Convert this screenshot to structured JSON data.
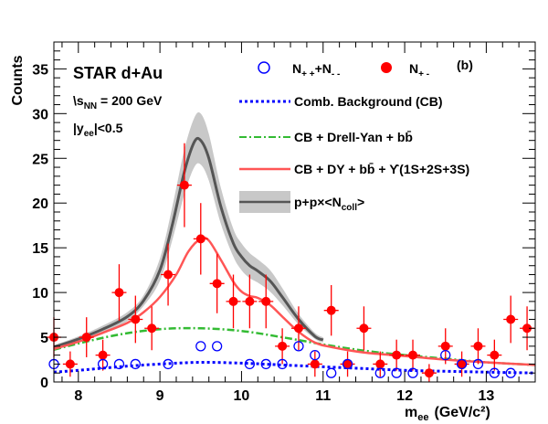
{
  "chart_data": {
    "type": "scatter",
    "panel_label": "(b)",
    "xlabel": "m_ee (GeV/c²)",
    "xlabel_main": "m",
    "xlabel_sub": "ee",
    "xlabel_unit": "(GeV/c²)",
    "ylabel": "Counts",
    "xlim": [
      7.7,
      13.6
    ],
    "ylim": [
      0,
      38
    ],
    "x_ticks": [
      8,
      9,
      10,
      11,
      12,
      13
    ],
    "y_ticks": [
      0,
      5,
      10,
      15,
      20,
      25,
      30,
      35
    ],
    "grid": false,
    "legend_position": "top-right",
    "annotations": {
      "experiment": "STAR d+Au",
      "energy_prefix": "\\s",
      "energy_sub": "NN",
      "energy_value": " = 200 GeV",
      "rapidity_prefix": "|y",
      "rapidity_sub": "ee",
      "rapidity_value": "|<0.5"
    },
    "legend": {
      "n_pp_mm_base": "N",
      "n_pp_mm_sub1": "+ +",
      "n_pp_mm_mid": "+N",
      "n_pp_mm_sub2": "- -",
      "n_pm_base": "N",
      "n_pm_sub": "+ -",
      "cb": "Comb. Background (CB)",
      "dy": "CB + Drell-Yan + bb̄",
      "ups": "CB + DY + bb̄ + ϒ(1S+2S+3S)",
      "pp_main": "p+p×<N",
      "pp_sub": "coll",
      "pp_end": ">"
    },
    "series": [
      {
        "name": "N+-",
        "kind": "points",
        "color": "#ff0000",
        "marker": "filled-circle",
        "x": [
          7.7,
          7.9,
          8.1,
          8.3,
          8.5,
          8.7,
          8.9,
          9.1,
          9.3,
          9.5,
          9.7,
          9.9,
          10.1,
          10.3,
          10.5,
          10.7,
          10.9,
          11.1,
          11.3,
          11.5,
          11.7,
          11.9,
          12.1,
          12.3,
          12.5,
          12.7,
          12.9,
          13.1,
          13.3,
          13.5
        ],
        "y": [
          5,
          2,
          5,
          3,
          10,
          7,
          6,
          12,
          22,
          16,
          11,
          9,
          9,
          9,
          4,
          6,
          2,
          8,
          2,
          6,
          2,
          3,
          3,
          1,
          4,
          2,
          4,
          3,
          7,
          6
        ]
      },
      {
        "name": "N++ + N--",
        "kind": "points",
        "color": "#0000ff",
        "marker": "open-circle",
        "x": [
          7.7,
          8.3,
          8.5,
          8.7,
          9.1,
          9.5,
          9.7,
          10.1,
          10.3,
          10.5,
          10.7,
          10.9,
          11.1,
          11.3,
          11.7,
          11.9,
          12.1,
          12.5,
          12.7,
          12.9,
          13.1,
          13.3
        ],
        "y": [
          2,
          2,
          2,
          2,
          2,
          4,
          4,
          2,
          2,
          2,
          4,
          3,
          1,
          2,
          1,
          1,
          1,
          3,
          2,
          2,
          1,
          1
        ]
      },
      {
        "name": "Comb. Background (CB)",
        "kind": "curve",
        "color": "#0000ff",
        "dash": "dotted",
        "x": [
          7.7,
          8.0,
          8.5,
          9.0,
          9.5,
          10.0,
          10.5,
          11.0,
          11.5,
          12.0,
          12.5,
          13.0,
          13.6
        ],
        "y": [
          1.1,
          1.3,
          1.7,
          2.0,
          2.2,
          2.1,
          1.9,
          1.7,
          1.5,
          1.3,
          1.2,
          1.1,
          1.0
        ]
      },
      {
        "name": "CB + Drell-Yan + bb",
        "kind": "curve",
        "color": "#33bb33",
        "dash": "dashdot",
        "x": [
          7.7,
          8.0,
          8.5,
          9.0,
          9.5,
          10.0,
          10.5,
          11.0,
          11.5,
          12.0,
          12.5,
          13.0,
          13.6
        ],
        "y": [
          3.6,
          4.3,
          5.3,
          5.9,
          6.0,
          5.7,
          5.0,
          4.2,
          3.5,
          3.0,
          2.6,
          2.2,
          1.9
        ]
      },
      {
        "name": "CB + DY + bb + Upsilon(1S+2S+3S)",
        "kind": "curve",
        "color": "#ff5555",
        "dash": "solid",
        "x": [
          7.7,
          8.0,
          8.3,
          8.6,
          8.8,
          9.0,
          9.2,
          9.35,
          9.5,
          9.6,
          9.75,
          9.9,
          10.0,
          10.1,
          10.2,
          10.35,
          10.5,
          10.7,
          10.9,
          11.1,
          11.5,
          12.0,
          12.5,
          13.0,
          13.6
        ],
        "y": [
          3.7,
          4.5,
          5.5,
          6.6,
          7.8,
          9.5,
          12.0,
          14.6,
          16.0,
          15.8,
          13.6,
          11.2,
          10.1,
          9.6,
          9.4,
          8.6,
          7.3,
          5.6,
          4.4,
          3.9,
          3.3,
          2.9,
          2.5,
          2.2,
          1.9
        ]
      },
      {
        "name": "p+p x <Ncoll>",
        "kind": "band",
        "color": "#555555",
        "band_color": "#c8c8c8",
        "x": [
          7.7,
          8.0,
          8.3,
          8.6,
          8.8,
          9.0,
          9.15,
          9.3,
          9.42,
          9.5,
          9.6,
          9.75,
          9.9,
          10.0,
          10.1,
          10.2,
          10.35,
          10.5,
          10.7,
          10.9,
          11.0
        ],
        "y": [
          3.9,
          4.8,
          5.9,
          7.3,
          9.1,
          12.5,
          17.5,
          23.5,
          26.8,
          27.0,
          25.0,
          19.5,
          15.5,
          14.0,
          13.0,
          12.4,
          11.3,
          9.5,
          7.0,
          5.1,
          4.7
        ],
        "y_low": [
          3.7,
          4.5,
          5.5,
          6.8,
          8.5,
          11.3,
          15.8,
          21.0,
          24.0,
          24.3,
          22.5,
          17.6,
          14.0,
          12.5,
          11.6,
          11.1,
          10.1,
          8.6,
          6.4,
          4.8,
          4.4
        ],
        "y_high": [
          4.1,
          5.1,
          6.3,
          7.8,
          9.7,
          13.8,
          19.5,
          26.0,
          29.5,
          30.0,
          27.7,
          21.6,
          17.1,
          15.5,
          14.4,
          13.7,
          12.5,
          10.5,
          7.6,
          5.5,
          5.0
        ]
      }
    ]
  }
}
